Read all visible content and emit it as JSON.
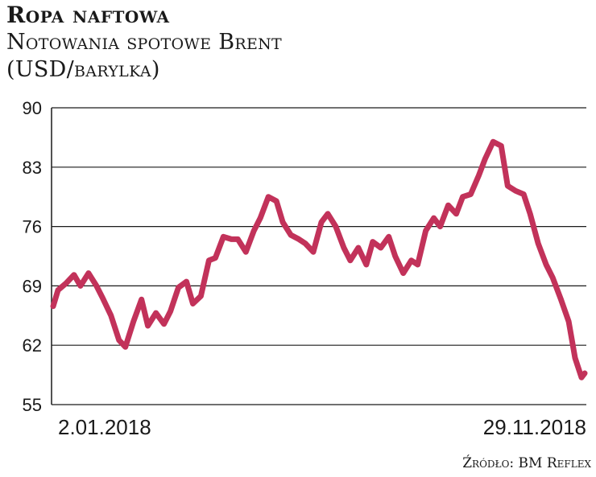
{
  "header": {
    "title": "Ropa naftowa",
    "subtitle_line1": "Notowania spotowe Brent",
    "subtitle_line2": "(USD/barylka)"
  },
  "footer": {
    "source": "Źródło: BM Reflex"
  },
  "colors": {
    "line": "#c2325a",
    "grid": "#1a1a1a",
    "text": "#1a1a1a"
  },
  "chart_data": {
    "type": "line",
    "title": "Ropa naftowa",
    "subtitle": "Notowania spotowe Brent (USD/barylka)",
    "xlabel": "",
    "ylabel": "",
    "ylim": [
      55,
      90
    ],
    "yticks": [
      55,
      62,
      69,
      76,
      83,
      90
    ],
    "x_tick_labels": [
      "2.01.2018",
      "29.11.2018"
    ],
    "x_range": [
      "2018-01-02",
      "2018-11-29"
    ],
    "grid": true,
    "series": [
      {
        "x": [
          "2018-01-02",
          "2018-01-05",
          "2018-01-10",
          "2018-01-15",
          "2018-01-19",
          "2018-01-24",
          "2018-01-29",
          "2018-02-02",
          "2018-02-07",
          "2018-02-12",
          "2018-02-16",
          "2018-02-21",
          "2018-02-26",
          "2018-03-02",
          "2018-03-07",
          "2018-03-12",
          "2018-03-16",
          "2018-03-21",
          "2018-03-26",
          "2018-03-30",
          "2018-04-04",
          "2018-04-09",
          "2018-04-13",
          "2018-04-18",
          "2018-04-23",
          "2018-04-27",
          "2018-05-02",
          "2018-05-07",
          "2018-05-11",
          "2018-05-16",
          "2018-05-21",
          "2018-05-25",
          "2018-05-30",
          "2018-06-04",
          "2018-06-08",
          "2018-06-13",
          "2018-06-18",
          "2018-06-22",
          "2018-06-27",
          "2018-07-02",
          "2018-07-06",
          "2018-07-11",
          "2018-07-16",
          "2018-07-20",
          "2018-07-25",
          "2018-07-30",
          "2018-08-03",
          "2018-08-08",
          "2018-08-13",
          "2018-08-17",
          "2018-08-22",
          "2018-08-27",
          "2018-08-31",
          "2018-09-05",
          "2018-09-10",
          "2018-09-14",
          "2018-09-19",
          "2018-09-24",
          "2018-09-28",
          "2018-10-03",
          "2018-10-08",
          "2018-10-12",
          "2018-10-17",
          "2018-10-22",
          "2018-10-26",
          "2018-10-31",
          "2018-11-05",
          "2018-11-09",
          "2018-11-14",
          "2018-11-19",
          "2018-11-23",
          "2018-11-27",
          "2018-11-29"
        ],
        "values": [
          66.6,
          68.5,
          69.3,
          70.3,
          69.0,
          70.5,
          69.0,
          67.5,
          65.5,
          62.6,
          61.8,
          64.8,
          67.4,
          64.3,
          65.8,
          64.5,
          66.0,
          68.8,
          69.5,
          66.9,
          67.8,
          72.0,
          72.3,
          74.8,
          74.5,
          74.5,
          73.0,
          75.5,
          77.0,
          79.5,
          79.0,
          76.5,
          75.0,
          74.5,
          74.0,
          73.0,
          76.5,
          77.5,
          76.0,
          73.5,
          72.0,
          73.5,
          71.5,
          74.2,
          73.5,
          74.8,
          72.5,
          70.5,
          72.0,
          71.5,
          75.5,
          77.0,
          76.0,
          78.5,
          77.5,
          79.5,
          79.8,
          82.0,
          84.0,
          86.0,
          85.5,
          80.8,
          80.2,
          79.8,
          77.5,
          74.0,
          71.5,
          70.0,
          67.5,
          64.8,
          60.5,
          58.2,
          58.7
        ]
      }
    ]
  }
}
